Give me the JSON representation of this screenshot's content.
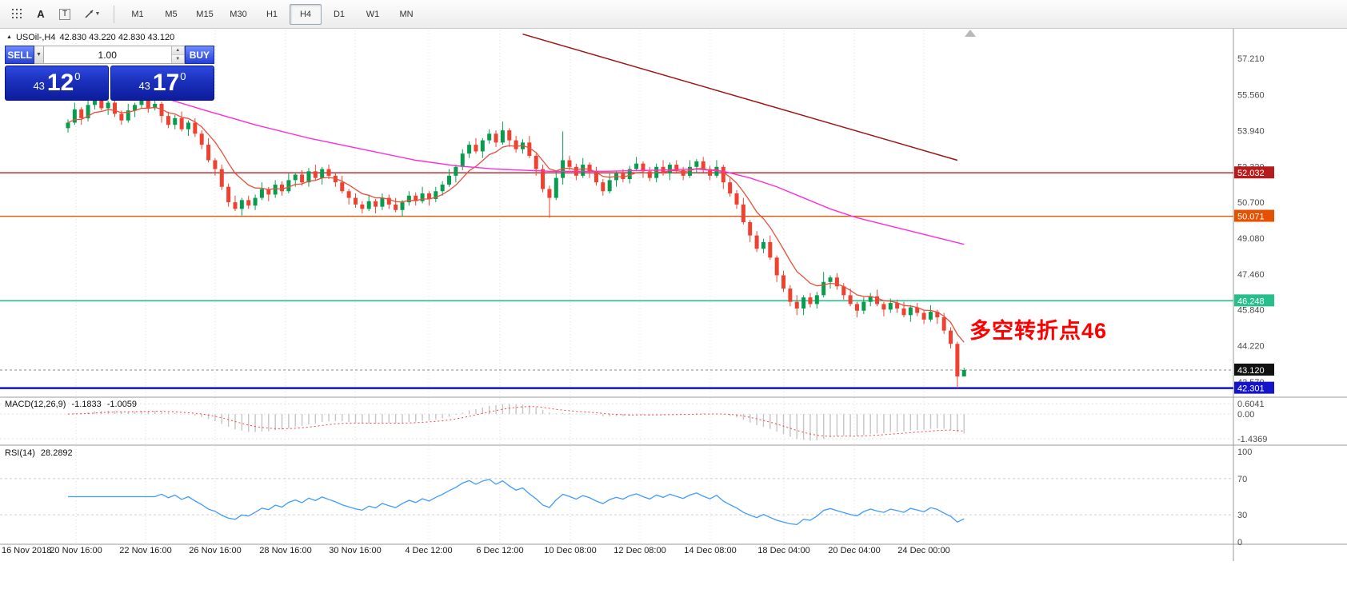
{
  "toolbar": {
    "icons": {
      "a": "A",
      "t": "T"
    },
    "timeframes": [
      "M1",
      "M5",
      "M15",
      "M30",
      "H1",
      "H4",
      "D1",
      "W1",
      "MN"
    ],
    "active_timeframe": "H4"
  },
  "chart_header": {
    "symbol": "USOil-,H4",
    "ohlc": "42.830 43.220 42.830 43.120"
  },
  "trade_panel": {
    "sell_label": "SELL",
    "buy_label": "BUY",
    "volume": "1.00",
    "sell_price": {
      "prefix": "43",
      "big": "12",
      "sup": "0"
    },
    "buy_price": {
      "prefix": "43",
      "big": "17",
      "sup": "0"
    }
  },
  "annotation": {
    "text": "多空转折点46",
    "color": "#FF0000"
  },
  "indicators": {
    "macd": {
      "label": "MACD(12,26,9)",
      "value_main": "-1.1833",
      "value_signal": "-1.0059",
      "scale": [
        {
          "label": "0.6041",
          "value": 0.6041
        },
        {
          "label": "0.00",
          "value": 0
        },
        {
          "label": "-1.4369",
          "value": -1.4369
        }
      ]
    },
    "rsi": {
      "label": "RSI(14)",
      "value": "28.2892",
      "scale": [
        {
          "label": "100",
          "value": 100
        },
        {
          "label": "70",
          "value": 70
        },
        {
          "label": "30",
          "value": 30
        },
        {
          "label": "0",
          "value": 0
        }
      ],
      "levels": [
        70,
        30
      ]
    }
  },
  "price_scale": {
    "labels": [
      "57.210",
      "55.560",
      "53.940",
      "52.320",
      "50.700",
      "49.080",
      "47.460",
      "45.840",
      "44.220",
      "42.570"
    ],
    "badges": [
      {
        "value": "52.032",
        "color": "#b71c1c"
      },
      {
        "value": "50.071",
        "color": "#e65100"
      },
      {
        "value": "46.248",
        "color": "#26bf8c"
      },
      {
        "value": "43.120",
        "color": "#111111"
      },
      {
        "value": "42.301",
        "color": "#1515c8"
      }
    ]
  },
  "time_axis": {
    "labels": [
      "16 Nov 2018",
      "20 Nov 16:00",
      "22 Nov 16:00",
      "26 Nov 16:00",
      "28 Nov 16:00",
      "30 Nov 16:00",
      "4 Dec 12:00",
      "6 Dec 12:00",
      "10 Dec 08:00",
      "12 Dec 08:00",
      "14 Dec 08:00",
      "18 Dec 04:00",
      "20 Dec 04:00",
      "24 Dec 00:00"
    ]
  },
  "chart_data": {
    "type": "candlestick",
    "symbol": "USOil-",
    "timeframe": "H4",
    "price_range": [
      41.89,
      58.47
    ],
    "up_color": "#089d4e",
    "down_color": "#ef4130",
    "candles": [
      [
        54.05,
        54.45,
        53.85,
        54.3
      ],
      [
        54.3,
        55.2,
        54.2,
        54.9
      ],
      [
        54.9,
        55.0,
        54.2,
        54.5
      ],
      [
        54.5,
        55.3,
        54.35,
        55.1
      ],
      [
        55.1,
        55.6,
        54.9,
        55.35
      ],
      [
        55.35,
        55.45,
        54.85,
        54.95
      ],
      [
        54.95,
        55.3,
        54.65,
        55.2
      ],
      [
        55.2,
        55.4,
        54.55,
        54.7
      ],
      [
        54.7,
        54.85,
        54.2,
        54.4
      ],
      [
        54.4,
        55.15,
        54.3,
        54.85
      ],
      [
        54.85,
        55.2,
        54.55,
        55.1
      ],
      [
        55.1,
        55.5,
        54.95,
        55.3
      ],
      [
        55.3,
        55.45,
        54.75,
        54.95
      ],
      [
        54.95,
        55.45,
        54.85,
        55.15
      ],
      [
        55.15,
        55.25,
        54.3,
        54.6
      ],
      [
        54.6,
        54.8,
        54.05,
        54.2
      ],
      [
        54.2,
        54.65,
        54.0,
        54.5
      ],
      [
        54.5,
        54.8,
        53.9,
        54.0
      ],
      [
        54.0,
        54.4,
        53.7,
        54.3
      ],
      [
        54.3,
        54.5,
        53.65,
        53.8
      ],
      [
        53.8,
        53.95,
        53.1,
        53.3
      ],
      [
        53.3,
        53.6,
        52.5,
        52.6
      ],
      [
        52.6,
        52.7,
        51.9,
        52.2
      ],
      [
        52.2,
        52.4,
        51.25,
        51.4
      ],
      [
        51.4,
        51.55,
        50.5,
        50.7
      ],
      [
        50.7,
        51.0,
        50.3,
        50.4
      ],
      [
        50.4,
        50.9,
        50.1,
        50.8
      ],
      [
        50.8,
        51.0,
        50.4,
        50.55
      ],
      [
        50.55,
        51.05,
        50.35,
        50.9
      ],
      [
        50.9,
        51.6,
        50.8,
        51.3
      ],
      [
        51.3,
        51.4,
        50.75,
        51.05
      ],
      [
        51.05,
        51.7,
        50.9,
        51.5
      ],
      [
        51.5,
        51.65,
        51.0,
        51.2
      ],
      [
        51.2,
        52.0,
        51.1,
        51.7
      ],
      [
        51.7,
        52.05,
        51.4,
        51.95
      ],
      [
        51.95,
        52.15,
        51.45,
        51.6
      ],
      [
        51.6,
        52.25,
        51.4,
        52.1
      ],
      [
        52.1,
        52.4,
        51.7,
        51.8
      ],
      [
        51.8,
        52.3,
        51.5,
        52.2
      ],
      [
        52.2,
        52.4,
        51.75,
        51.9
      ],
      [
        51.9,
        52.05,
        51.4,
        51.6
      ],
      [
        51.6,
        51.9,
        51.1,
        51.2
      ],
      [
        51.2,
        51.3,
        50.6,
        50.9
      ],
      [
        50.9,
        51.1,
        50.45,
        50.6
      ],
      [
        50.6,
        50.75,
        50.2,
        50.4
      ],
      [
        50.4,
        51.05,
        50.3,
        50.75
      ],
      [
        50.75,
        50.85,
        50.2,
        50.5
      ],
      [
        50.5,
        51.1,
        50.35,
        50.9
      ],
      [
        50.9,
        51.05,
        50.4,
        50.6
      ],
      [
        50.6,
        50.9,
        50.25,
        50.35
      ],
      [
        50.35,
        50.8,
        50.05,
        50.7
      ],
      [
        50.7,
        51.2,
        50.55,
        51.0
      ],
      [
        51.0,
        51.15,
        50.55,
        50.75
      ],
      [
        50.75,
        51.4,
        50.65,
        51.1
      ],
      [
        51.1,
        51.2,
        50.55,
        50.85
      ],
      [
        50.85,
        51.4,
        50.7,
        51.2
      ],
      [
        51.2,
        51.65,
        51.0,
        51.5
      ],
      [
        51.5,
        52.2,
        51.4,
        51.9
      ],
      [
        51.9,
        52.4,
        51.6,
        52.3
      ],
      [
        52.3,
        53.1,
        52.15,
        52.9
      ],
      [
        52.9,
        53.45,
        52.7,
        53.3
      ],
      [
        53.3,
        53.6,
        52.9,
        53.0
      ],
      [
        53.0,
        53.6,
        52.7,
        53.5
      ],
      [
        53.5,
        54.0,
        53.35,
        53.8
      ],
      [
        53.8,
        53.95,
        53.2,
        53.4
      ],
      [
        53.4,
        54.35,
        53.3,
        53.95
      ],
      [
        53.95,
        54.05,
        53.2,
        53.5
      ],
      [
        53.5,
        53.7,
        52.95,
        53.1
      ],
      [
        53.1,
        53.55,
        52.9,
        53.4
      ],
      [
        53.4,
        53.7,
        52.7,
        52.8
      ],
      [
        52.8,
        52.9,
        51.9,
        52.2
      ],
      [
        52.2,
        52.4,
        51.15,
        51.3
      ],
      [
        51.3,
        51.45,
        50.0,
        50.9
      ],
      [
        50.9,
        52.1,
        50.8,
        51.8
      ],
      [
        51.8,
        53.9,
        51.5,
        52.6
      ],
      [
        52.6,
        52.8,
        52.15,
        52.3
      ],
      [
        52.3,
        52.45,
        51.7,
        51.9
      ],
      [
        51.9,
        52.7,
        51.8,
        52.4
      ],
      [
        52.4,
        52.5,
        51.8,
        52.1
      ],
      [
        52.1,
        52.3,
        51.45,
        51.6
      ],
      [
        51.6,
        51.75,
        51.0,
        51.2
      ],
      [
        51.2,
        52.0,
        51.1,
        51.7
      ],
      [
        51.7,
        52.1,
        51.4,
        52.0
      ],
      [
        52.0,
        52.2,
        51.6,
        51.75
      ],
      [
        51.75,
        52.35,
        51.55,
        52.2
      ],
      [
        52.2,
        52.75,
        52.1,
        52.45
      ],
      [
        52.45,
        52.55,
        51.8,
        52.1
      ],
      [
        52.1,
        52.3,
        51.65,
        51.8
      ],
      [
        51.8,
        52.45,
        51.6,
        52.3
      ],
      [
        52.3,
        52.6,
        51.9,
        52.0
      ],
      [
        52.0,
        52.5,
        51.7,
        52.4
      ],
      [
        52.4,
        52.6,
        52.0,
        52.15
      ],
      [
        52.15,
        52.3,
        51.7,
        51.9
      ],
      [
        51.9,
        52.6,
        51.8,
        52.3
      ],
      [
        52.3,
        52.65,
        52.0,
        52.55
      ],
      [
        52.55,
        52.75,
        52.05,
        52.2
      ],
      [
        52.2,
        52.35,
        51.7,
        51.9
      ],
      [
        51.9,
        52.6,
        51.8,
        52.3
      ],
      [
        52.3,
        52.4,
        51.3,
        51.6
      ],
      [
        51.6,
        51.8,
        50.95,
        51.1
      ],
      [
        51.1,
        51.25,
        50.4,
        50.6
      ],
      [
        50.6,
        50.9,
        49.7,
        49.8
      ],
      [
        49.8,
        49.9,
        48.9,
        49.2
      ],
      [
        49.2,
        49.4,
        48.45,
        48.6
      ],
      [
        48.6,
        49.05,
        48.4,
        48.9
      ],
      [
        48.9,
        49.2,
        48.1,
        48.2
      ],
      [
        48.2,
        48.3,
        47.1,
        47.4
      ],
      [
        47.4,
        47.6,
        46.65,
        46.8
      ],
      [
        46.8,
        46.95,
        46.0,
        46.2
      ],
      [
        46.2,
        46.5,
        45.6,
        45.9
      ],
      [
        45.9,
        46.5,
        45.6,
        46.4
      ],
      [
        46.4,
        46.6,
        45.95,
        46.1
      ],
      [
        46.1,
        46.65,
        45.9,
        46.5
      ],
      [
        46.5,
        47.55,
        46.4,
        47.1
      ],
      [
        47.1,
        47.4,
        46.8,
        47.3
      ],
      [
        47.3,
        47.5,
        46.75,
        46.9
      ],
      [
        46.9,
        47.05,
        46.3,
        46.5
      ],
      [
        46.5,
        46.8,
        46.0,
        46.1
      ],
      [
        46.1,
        46.2,
        45.5,
        45.8
      ],
      [
        45.8,
        46.4,
        45.65,
        46.2
      ],
      [
        46.2,
        46.6,
        46.0,
        46.45
      ],
      [
        46.45,
        46.75,
        46.0,
        46.1
      ],
      [
        46.1,
        46.2,
        45.55,
        45.85
      ],
      [
        45.85,
        46.35,
        45.7,
        46.15
      ],
      [
        46.15,
        46.3,
        45.7,
        45.9
      ],
      [
        45.9,
        46.2,
        45.5,
        45.6
      ],
      [
        45.6,
        46.05,
        45.3,
        45.95
      ],
      [
        45.95,
        46.15,
        45.55,
        45.7
      ],
      [
        45.7,
        45.85,
        45.2,
        45.4
      ],
      [
        45.4,
        46.05,
        45.3,
        45.75
      ],
      [
        45.75,
        45.85,
        45.2,
        45.5
      ],
      [
        45.5,
        45.7,
        44.75,
        44.9
      ],
      [
        44.9,
        45.05,
        44.1,
        44.3
      ],
      [
        44.3,
        44.4,
        42.3,
        42.83
      ],
      [
        42.83,
        43.22,
        42.83,
        43.12
      ]
    ],
    "hlines": [
      {
        "price": 52.032,
        "color": "#b71c1c",
        "width": 1.4
      },
      {
        "price": 50.071,
        "color": "#e65100",
        "width": 1.4
      },
      {
        "price": 46.248,
        "color": "#26bf8c",
        "width": 1.6
      },
      {
        "price": 42.301,
        "color": "#1515c8",
        "width": 2.6
      }
    ],
    "bid_line": {
      "price": 43.12,
      "color": "#8a8a8a"
    },
    "trendline": {
      "from": [
        68,
        58.3
      ],
      "to": [
        133,
        52.6
      ],
      "color": "#a01010"
    },
    "slow_ma": {
      "color": "#ff2bd6",
      "points": [
        [
          14,
          55.45
        ],
        [
          20,
          54.9
        ],
        [
          28,
          54.2
        ],
        [
          36,
          53.6
        ],
        [
          44,
          53.1
        ],
        [
          52,
          52.6
        ],
        [
          58,
          52.35
        ],
        [
          64,
          52.2
        ],
        [
          72,
          52.1
        ],
        [
          80,
          52.1
        ],
        [
          88,
          52.15
        ],
        [
          94,
          52.2
        ],
        [
          98,
          52.1
        ],
        [
          102,
          51.8
        ],
        [
          106,
          51.4
        ],
        [
          110,
          50.9
        ],
        [
          114,
          50.4
        ],
        [
          118,
          50.0
        ],
        [
          122,
          49.7
        ],
        [
          126,
          49.4
        ],
        [
          130,
          49.1
        ],
        [
          134,
          48.8
        ]
      ]
    },
    "fast_ma": {
      "color": "#e8503a",
      "period": 8
    },
    "macd": {
      "fast": 12,
      "slow": 26,
      "signal": 9,
      "range": [
        -1.81,
        0.98
      ],
      "hist_color": "#c4c4c4",
      "signal_color": "#ff4040"
    },
    "rsi": {
      "period": 14,
      "color": "#3e9bff"
    }
  }
}
